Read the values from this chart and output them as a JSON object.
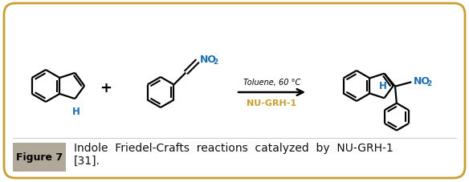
{
  "bg_color": "#ffffff",
  "border_color": "#c8a030",
  "figure_label_bg": "#b0a898",
  "caption_color": "#111111",
  "nh_color": "#1a6faf",
  "no2_color": "#1a6faf",
  "nu_grh_color": "#c8a030",
  "font_size_caption": 10,
  "font_size_label": 9,
  "font_size_reaction_above": 7,
  "font_size_reaction_below": 8,
  "font_size_no2": 9,
  "font_size_no2_sub": 6.5,
  "font_size_nh": 8.5,
  "reaction_above": "Toluene, 60 °C",
  "reaction_below": "NU-GRH-1",
  "figure_number": "Figure 7",
  "caption_line1": "Indole  Friedel-Crafts  reactions  catalyzed  by  NU-GRH-1",
  "caption_line2": "[31]."
}
